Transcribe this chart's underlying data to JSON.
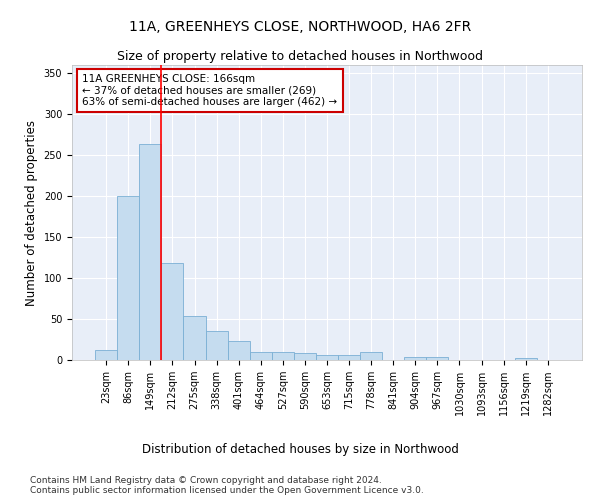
{
  "title": "11A, GREENHEYS CLOSE, NORTHWOOD, HA6 2FR",
  "subtitle": "Size of property relative to detached houses in Northwood",
  "xlabel": "Distribution of detached houses by size in Northwood",
  "ylabel": "Number of detached properties",
  "bar_labels": [
    "23sqm",
    "86sqm",
    "149sqm",
    "212sqm",
    "275sqm",
    "338sqm",
    "401sqm",
    "464sqm",
    "527sqm",
    "590sqm",
    "653sqm",
    "715sqm",
    "778sqm",
    "841sqm",
    "904sqm",
    "967sqm",
    "1030sqm",
    "1093sqm",
    "1156sqm",
    "1219sqm",
    "1282sqm"
  ],
  "bar_values": [
    12,
    200,
    263,
    118,
    54,
    35,
    23,
    10,
    10,
    8,
    6,
    6,
    10,
    0,
    4,
    4,
    0,
    0,
    0,
    3,
    0
  ],
  "bar_color": "#c5dcef",
  "bar_edge_color": "#7aafd4",
  "background_color": "#e8eef8",
  "grid_color": "#ffffff",
  "annotation_text": "11A GREENHEYS CLOSE: 166sqm\n← 37% of detached houses are smaller (269)\n63% of semi-detached houses are larger (462) →",
  "annotation_box_color": "#ffffff",
  "annotation_border_color": "#cc0000",
  "red_line_x": 2.5,
  "ylim": [
    0,
    360
  ],
  "yticks": [
    0,
    50,
    100,
    150,
    200,
    250,
    300,
    350
  ],
  "footer_line1": "Contains HM Land Registry data © Crown copyright and database right 2024.",
  "footer_line2": "Contains public sector information licensed under the Open Government Licence v3.0.",
  "title_fontsize": 10,
  "subtitle_fontsize": 9,
  "axis_label_fontsize": 8.5,
  "tick_fontsize": 7,
  "annotation_fontsize": 7.5,
  "footer_fontsize": 6.5
}
